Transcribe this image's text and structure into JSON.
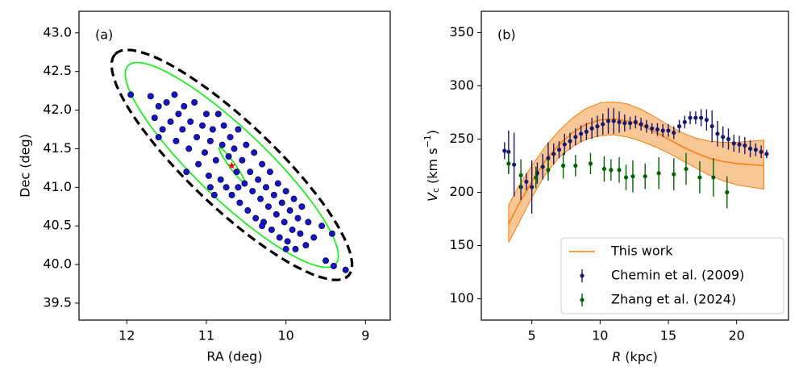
{
  "chart_data": [
    {
      "type": "scatter",
      "annotation": {
        "text": "(a)",
        "color": "#ff0000"
      },
      "xlabel": "RA (deg)",
      "ylabel": "Dec (deg)",
      "xlim": [
        12.6,
        8.69
      ],
      "ylim": [
        39.28,
        43.28
      ],
      "xticks": [
        12,
        11,
        10,
        9
      ],
      "yticks": [
        39.5,
        {
          "value": 40,
          "label": "40.0"
        },
        40.5,
        {
          "value": 41,
          "label": "41.0"
        },
        41.5,
        {
          "value": 42,
          "label": "42.0"
        },
        42.5,
        {
          "value": 43,
          "label": "43.0"
        }
      ],
      "series": [
        {
          "color": "#1414c8",
          "edge": "#0a0a40",
          "x": [
            11.95,
            11.7,
            11.65,
            11.6,
            11.55,
            11.5,
            11.45,
            11.4,
            11.38,
            11.35,
            11.3,
            11.28,
            11.22,
            11.2,
            11.15,
            11.12,
            11.1,
            11.05,
            11.02,
            11.0,
            10.97,
            10.95,
            10.92,
            10.9,
            10.88,
            10.85,
            10.82,
            10.8,
            10.78,
            10.75,
            10.72,
            10.7,
            10.68,
            10.65,
            10.62,
            10.6,
            10.58,
            10.55,
            10.52,
            10.5,
            10.48,
            10.45,
            10.42,
            10.4,
            10.38,
            10.35,
            10.32,
            10.3,
            10.28,
            10.25,
            10.22,
            10.2,
            10.18,
            10.15,
            10.12,
            10.1,
            10.08,
            10.05,
            10.02,
            10.0,
            9.98,
            9.95,
            9.92,
            9.9,
            9.88,
            9.85,
            9.82,
            9.8,
            9.75,
            9.72,
            9.65,
            9.55,
            9.5,
            9.42,
            9.4,
            9.25,
            11.6,
            11.25,
            10.95,
            10.6,
            10.3,
            10.0
          ],
          "values": [
            42.2,
            42.18,
            41.9,
            42.05,
            41.75,
            42.1,
            41.85,
            42.2,
            41.6,
            41.95,
            41.75,
            42.05,
            41.5,
            41.85,
            42.1,
            41.65,
            41.3,
            41.8,
            41.45,
            41.95,
            41.15,
            41.6,
            41.75,
            40.9,
            41.35,
            41.95,
            41.1,
            41.55,
            41.8,
            41.0,
            41.4,
            41.65,
            40.9,
            41.5,
            41.2,
            41.75,
            40.8,
            41.35,
            41.05,
            41.55,
            40.7,
            41.2,
            40.95,
            41.45,
            40.6,
            41.1,
            40.85,
            41.3,
            40.55,
            41.0,
            40.75,
            41.2,
            40.45,
            40.9,
            40.65,
            41.05,
            40.35,
            40.8,
            40.55,
            40.95,
            40.3,
            40.7,
            40.45,
            40.85,
            40.2,
            40.6,
            40.4,
            40.75,
            40.25,
            40.55,
            40.35,
            40.5,
            40.05,
            40.4,
            39.98,
            39.93,
            41.65,
            41.2,
            41.0,
            41.0,
            40.5,
            40.2
          ]
        }
      ],
      "ellipses": [
        {
          "color": "#000000",
          "dashed": true,
          "center": [
            10.68,
            41.29
          ],
          "major_end": [
            12.15,
            42.72
          ],
          "minor_end": [
            11.03,
            40.87
          ]
        },
        {
          "color": "#22ee22",
          "dashed": false,
          "center": [
            10.68,
            41.29
          ],
          "major_end": [
            11.99,
            42.57
          ],
          "minor_end": [
            10.96,
            40.94
          ]
        },
        {
          "color": "#22ee22",
          "dashed": false,
          "center": [
            10.68,
            41.29
          ],
          "major_end": [
            10.84,
            41.51
          ],
          "minor_end": [
            10.69,
            41.24
          ]
        }
      ],
      "marker": {
        "x": 10.68,
        "y": 41.28,
        "color": "#ff0000"
      }
    },
    {
      "type": "line",
      "annotation": {
        "text": "(b)",
        "color": "#ff0000"
      },
      "xlabel": {
        "var": "R",
        "unit": "(kpc)"
      },
      "ylabel": {
        "var": "V",
        "sub": "c",
        "unit": "(km s",
        "sup": "−1",
        "close": ")"
      },
      "xlim": [
        1.3,
        23.8
      ],
      "ylim": [
        80,
        370
      ],
      "xticks": [
        5,
        10,
        15,
        20
      ],
      "yticks": [
        100,
        150,
        200,
        250,
        300,
        350
      ],
      "legend": "lower right",
      "band": {
        "color": "#f5a050",
        "edge": "#ff7f0e",
        "x": [
          3.3,
          4,
          5,
          6,
          7,
          8,
          9,
          10,
          11,
          12,
          13,
          14,
          15,
          16,
          17,
          18,
          19,
          20,
          21,
          22
        ],
        "upper": [
          188,
          205,
          225,
          243,
          258,
          270,
          279,
          284,
          285,
          283,
          278,
          271,
          263,
          256,
          251,
          248,
          247,
          247,
          248,
          249
        ],
        "lower": [
          153,
          170,
          195,
          217,
          233,
          243,
          250,
          253,
          254,
          252,
          248,
          243,
          237,
          230,
          223,
          216,
          211,
          207,
          205,
          203
        ]
      },
      "series": [
        {
          "name": "This work",
          "color": "#ff7f0e",
          "style": "line",
          "x": [
            3.3,
            4,
            5,
            6,
            7,
            8,
            9,
            10,
            11,
            12,
            13,
            14,
            15,
            16,
            17,
            18,
            19,
            20,
            21,
            22
          ],
          "values": [
            170,
            188,
            210,
            230,
            245,
            256,
            264,
            268,
            269,
            267,
            263,
            257,
            250,
            243,
            237,
            232,
            229,
            227,
            226,
            225
          ]
        },
        {
          "name": "Chemin et al. (2009)",
          "color": "#191970",
          "style": "errorbar",
          "x": [
            3.0,
            3.3,
            3.7,
            4.2,
            4.6,
            5.0,
            5.4,
            5.8,
            6.2,
            6.6,
            7.0,
            7.4,
            7.8,
            8.2,
            8.6,
            9.0,
            9.4,
            9.8,
            10.2,
            10.6,
            11.0,
            11.4,
            11.8,
            12.2,
            12.6,
            13.0,
            13.4,
            13.8,
            14.2,
            14.6,
            15.0,
            15.4,
            15.8,
            16.2,
            16.6,
            17.0,
            17.4,
            17.8,
            18.2,
            18.6,
            19.0,
            19.4,
            19.8,
            20.2,
            20.6,
            21.0,
            21.4,
            21.8,
            22.2
          ],
          "values": [
            239,
            238,
            226,
            205,
            210,
            205,
            218,
            224,
            232,
            236,
            240,
            245,
            248,
            252,
            255,
            257,
            260,
            262,
            264,
            267,
            267,
            266,
            265,
            265,
            266,
            264,
            262,
            260,
            259,
            258,
            258,
            256,
            262,
            266,
            270,
            270,
            270,
            268,
            262,
            255,
            252,
            250,
            246,
            245,
            244,
            241,
            240,
            238,
            236
          ],
          "errors": [
            8,
            20,
            30,
            12,
            8,
            25,
            10,
            12,
            15,
            10,
            8,
            10,
            8,
            8,
            8,
            8,
            10,
            10,
            10,
            12,
            12,
            10,
            8,
            6,
            6,
            6,
            6,
            5,
            6,
            6,
            6,
            6,
            6,
            6,
            6,
            6,
            8,
            10,
            15,
            12,
            10,
            10,
            8,
            8,
            8,
            8,
            6,
            6,
            4
          ]
        },
        {
          "name": "Zhang et al. (2024)",
          "color": "#006400",
          "style": "errorbar",
          "x": [
            3.3,
            4.2,
            5.3,
            6.2,
            7.3,
            8.2,
            9.3,
            10.3,
            10.8,
            11.4,
            11.9,
            12.4,
            13.3,
            14.3,
            15.4,
            16.3,
            17.3,
            18.3,
            19.3
          ],
          "values": [
            227,
            216,
            214,
            221,
            225,
            225,
            227,
            222,
            221,
            221,
            214,
            215,
            215,
            218,
            217,
            222,
            214,
            214,
            200
          ],
          "errors": [
            10,
            15,
            10,
            10,
            12,
            10,
            10,
            12,
            10,
            12,
            12,
            15,
            12,
            15,
            15,
            15,
            15,
            18,
            15
          ]
        }
      ]
    }
  ]
}
